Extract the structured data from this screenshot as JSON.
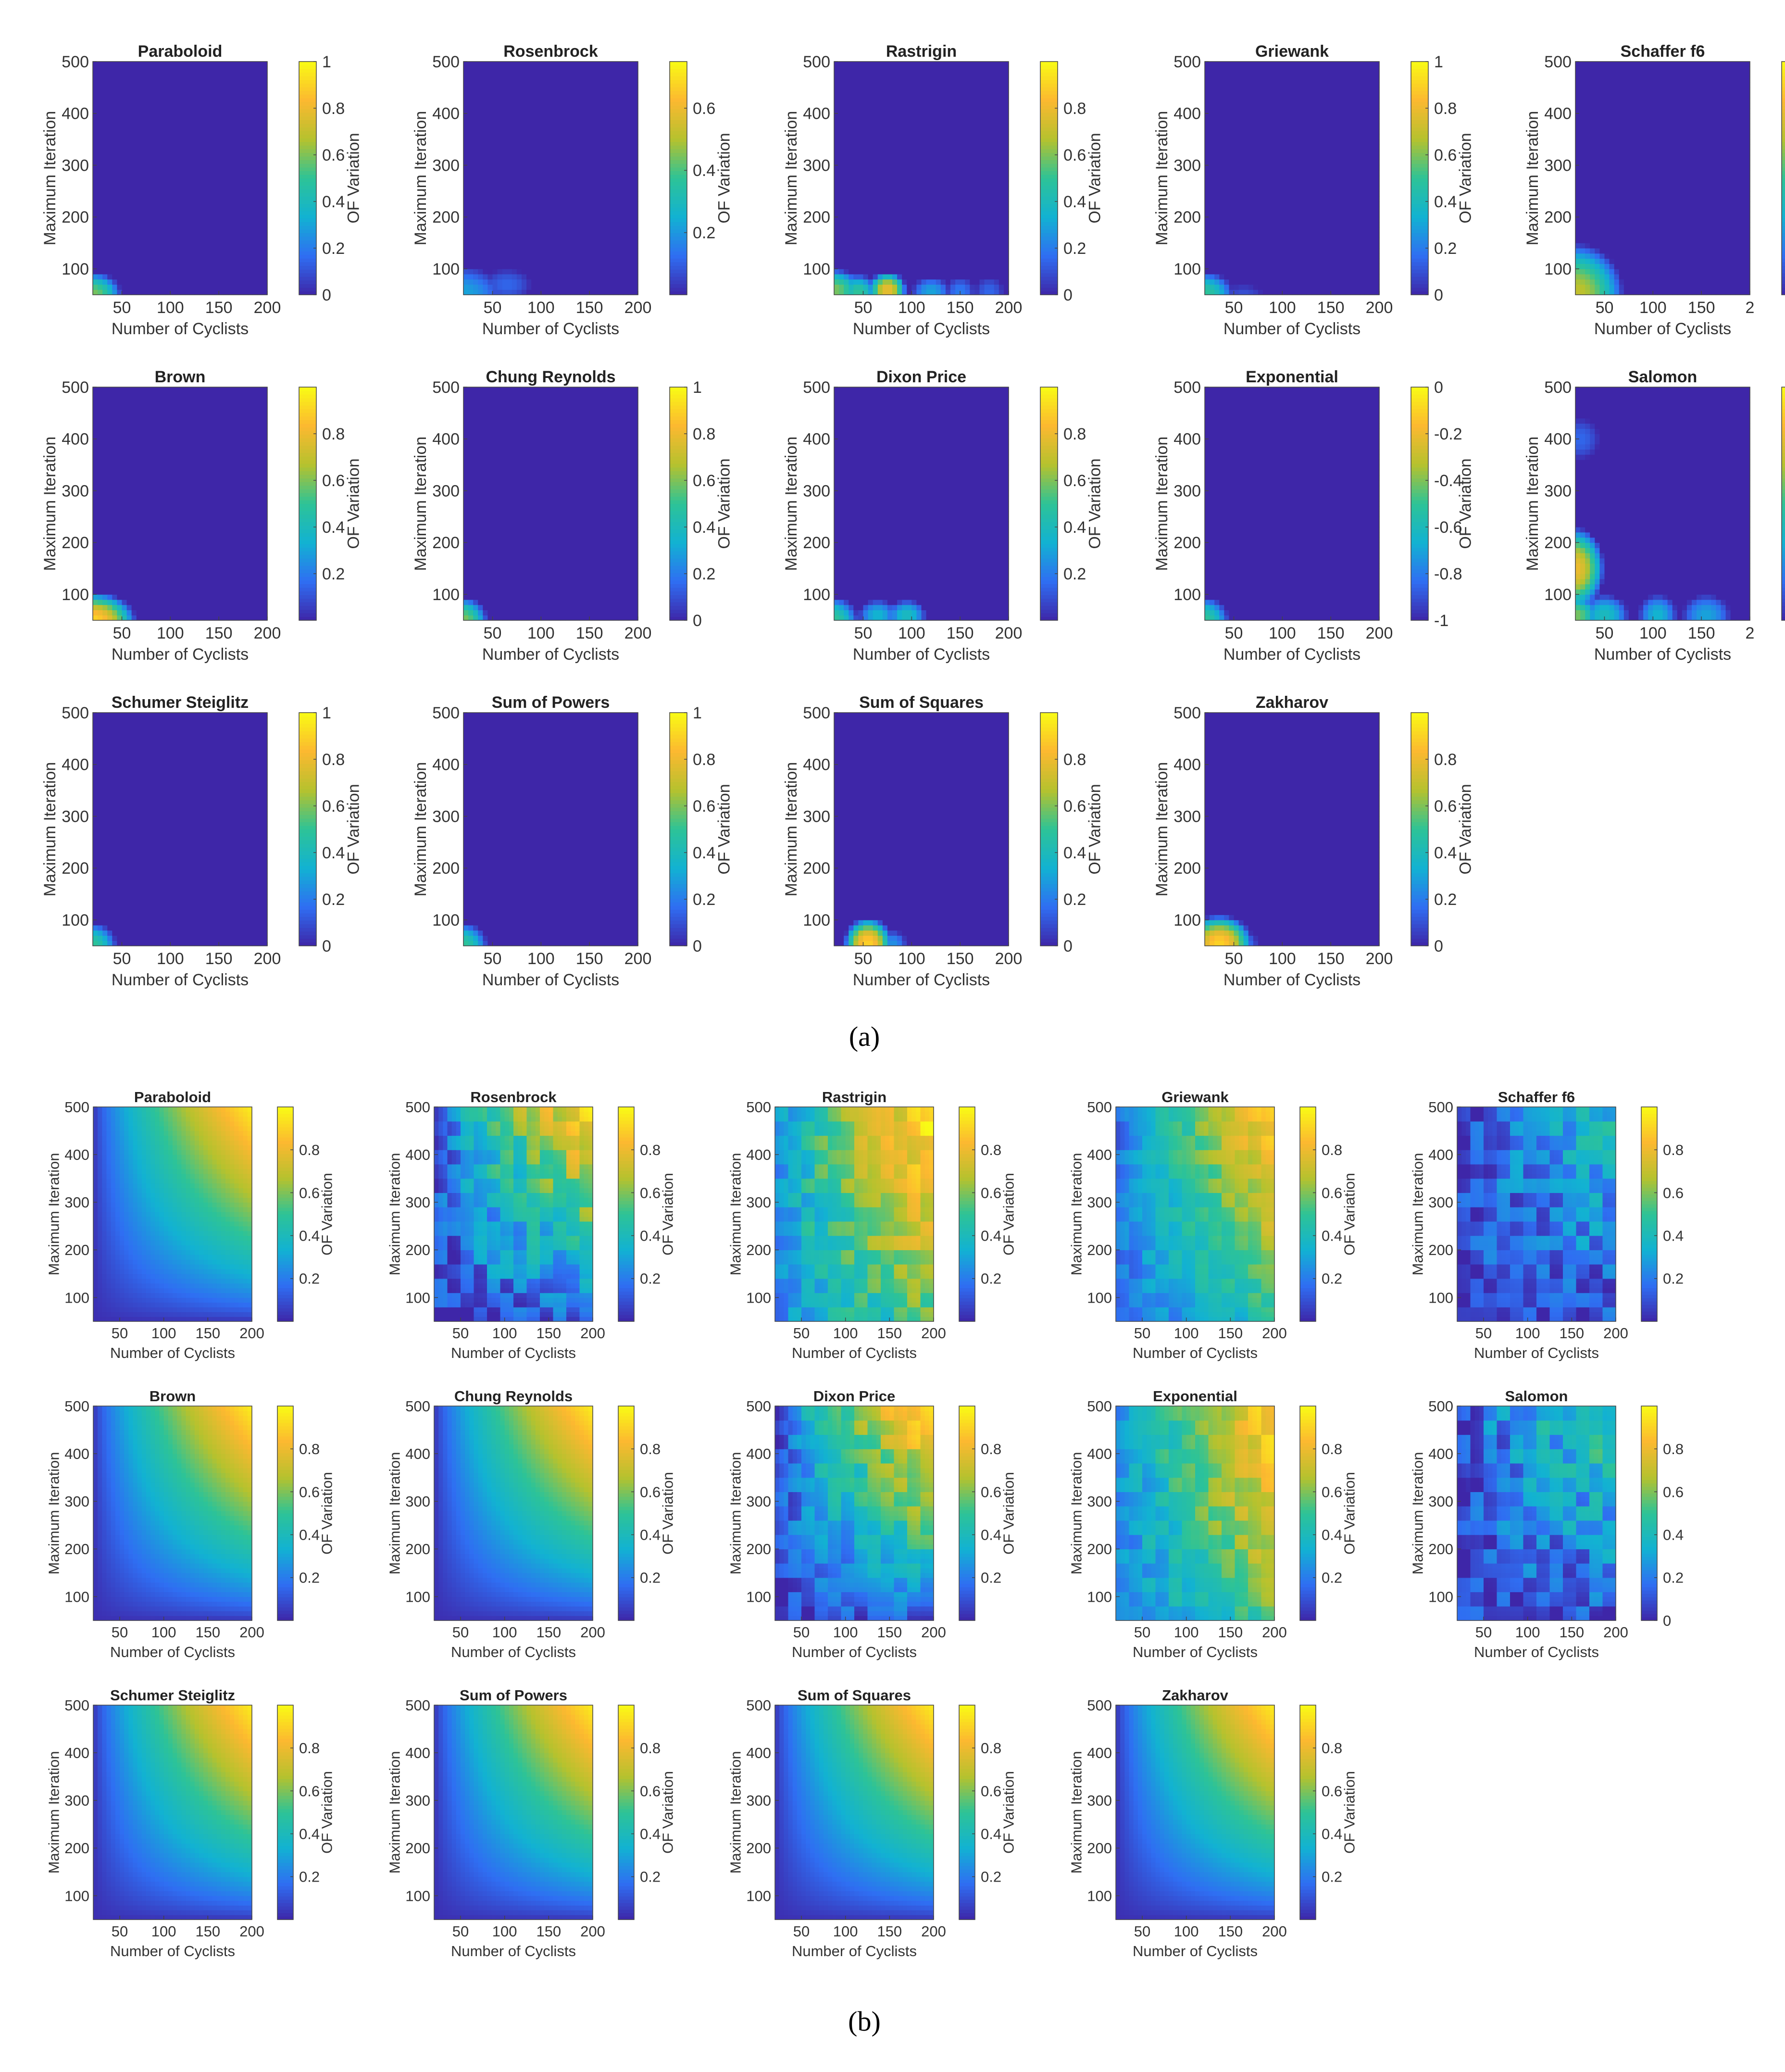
{
  "chart_data": [
    {
      "type": "heatmap",
      "panel_label": "(a)",
      "x_label": "Number of Cyclists",
      "y_label": "Maximum Iteration",
      "colorbar_label": "OF Variation",
      "xlim": [
        20,
        200
      ],
      "ylim": [
        50,
        500
      ],
      "colormap": [
        "#3e26a8",
        "#2f6ef2",
        "#12b2d2",
        "#2dc397",
        "#b5c22e",
        "#fcb830",
        "#f9fb15"
      ],
      "subplots": [
        {
          "title": "Paraboloid",
          "x_ticks": [
            "50",
            "100",
            "150",
            "200"
          ],
          "y_ticks": [
            "100",
            "200",
            "300",
            "400",
            "500"
          ],
          "cbar_ticks": [
            "0",
            "0.2",
            "0.4",
            "0.6",
            "0.8",
            "1"
          ],
          "cbar_range": [
            0,
            1
          ],
          "hotspots": [
            [
              20,
              50,
              30,
              45,
              0.6
            ]
          ]
        },
        {
          "title": "Rosenbrock",
          "x_ticks": [
            "50",
            "100",
            "150",
            "200"
          ],
          "y_ticks": [
            "100",
            "200",
            "300",
            "400",
            "500"
          ],
          "cbar_ticks": [
            "0.2",
            "0.4",
            "0.6"
          ],
          "cbar_range": [
            0,
            0.75
          ],
          "hotspots": [
            [
              20,
              50,
              40,
              55,
              0.3
            ],
            [
              65,
              70,
              25,
              30,
              0.15
            ]
          ]
        },
        {
          "title": "Rastrigin",
          "x_ticks": [
            "50",
            "100",
            "150",
            "200"
          ],
          "y_ticks": [
            "100",
            "200",
            "300",
            "400",
            "500"
          ],
          "cbar_ticks": [
            "0",
            "0.2",
            "0.4",
            "0.6",
            "0.8"
          ],
          "cbar_range": [
            0,
            1
          ],
          "hotspots": [
            [
              20,
              60,
              30,
              40,
              0.6
            ],
            [
              45,
              55,
              20,
              35,
              0.5
            ],
            [
              75,
              60,
              20,
              35,
              0.8
            ],
            [
              120,
              55,
              20,
              30,
              0.3
            ],
            [
              150,
              55,
              15,
              30,
              0.2
            ],
            [
              180,
              55,
              15,
              30,
              0.15
            ]
          ]
        },
        {
          "title": "Griewank",
          "x_ticks": [
            "50",
            "100",
            "150",
            "200"
          ],
          "y_ticks": [
            "100",
            "200",
            "300",
            "400",
            "500"
          ],
          "cbar_ticks": [
            "0",
            "0.2",
            "0.4",
            "0.6",
            "0.8",
            "1"
          ],
          "cbar_range": [
            0,
            1
          ],
          "hotspots": [
            [
              20,
              50,
              30,
              45,
              0.5
            ],
            [
              60,
              50,
              20,
              20,
              0.1
            ]
          ]
        },
        {
          "title": "Schaffer f6",
          "x_ticks": [
            "50",
            "100",
            "150",
            "2"
          ],
          "y_ticks": [
            "100",
            "200",
            "300",
            "400",
            "500"
          ],
          "cbar_ticks": [],
          "cbar_range": [
            0,
            1
          ],
          "hotspots": [
            [
              20,
              50,
              50,
              100,
              0.7
            ]
          ]
        },
        {
          "title": "Brown",
          "x_ticks": [
            "50",
            "100",
            "150",
            "200"
          ],
          "y_ticks": [
            "100",
            "200",
            "300",
            "400",
            "500"
          ],
          "cbar_ticks": [
            "0.2",
            "0.4",
            "0.6",
            "0.8"
          ],
          "cbar_range": [
            0,
            1
          ],
          "hotspots": [
            [
              20,
              50,
              45,
              55,
              0.9
            ]
          ]
        },
        {
          "title": "Chung Reynolds",
          "x_ticks": [
            "50",
            "100",
            "150",
            "200"
          ],
          "y_ticks": [
            "100",
            "200",
            "300",
            "400",
            "500"
          ],
          "cbar_ticks": [
            "0",
            "0.2",
            "0.4",
            "0.6",
            "0.8",
            "1"
          ],
          "cbar_range": [
            0,
            1
          ],
          "hotspots": [
            [
              20,
              50,
              25,
              45,
              0.6
            ]
          ]
        },
        {
          "title": "Dixon Price",
          "x_ticks": [
            "50",
            "100",
            "150",
            "200"
          ],
          "y_ticks": [
            "100",
            "200",
            "300",
            "400",
            "500"
          ],
          "cbar_ticks": [
            "0.2",
            "0.4",
            "0.6",
            "0.8"
          ],
          "cbar_range": [
            0,
            1
          ],
          "hotspots": [
            [
              20,
              50,
              25,
              45,
              0.5
            ],
            [
              65,
              60,
              20,
              30,
              0.35
            ],
            [
              95,
              60,
              20,
              30,
              0.4
            ]
          ]
        },
        {
          "title": "Exponential",
          "x_ticks": [
            "50",
            "100",
            "150",
            "200"
          ],
          "y_ticks": [
            "100",
            "200",
            "300",
            "400",
            "500"
          ],
          "cbar_ticks": [
            "0",
            "-0.2",
            "-0.4",
            "-0.6",
            "-0.8",
            "-1"
          ],
          "cbar_range": [
            -1,
            0
          ],
          "hotspots": [
            [
              20,
              50,
              25,
              45,
              0.5
            ]
          ]
        },
        {
          "title": "Salomon",
          "x_ticks": [
            "50",
            "100",
            "150",
            "2"
          ],
          "y_ticks": [
            "100",
            "200",
            "300",
            "400",
            "500"
          ],
          "cbar_ticks": [],
          "cbar_range": [
            0,
            1
          ],
          "hotspots": [
            [
              20,
              150,
              30,
              80,
              0.8
            ],
            [
              20,
              60,
              25,
              40,
              0.6
            ],
            [
              50,
              60,
              25,
              40,
              0.4
            ],
            [
              105,
              60,
              20,
              40,
              0.35
            ],
            [
              155,
              60,
              25,
              40,
              0.3
            ],
            [
              25,
              400,
              20,
              40,
              0.15
            ]
          ]
        },
        {
          "title": "Schumer Steiglitz",
          "x_ticks": [
            "50",
            "100",
            "150",
            "200"
          ],
          "y_ticks": [
            "100",
            "200",
            "300",
            "400",
            "500"
          ],
          "cbar_ticks": [
            "0",
            "0.2",
            "0.4",
            "0.6",
            "0.8",
            "1"
          ],
          "cbar_range": [
            0,
            1
          ],
          "hotspots": [
            [
              20,
              50,
              25,
              45,
              0.5
            ]
          ]
        },
        {
          "title": "Sum of Powers",
          "x_ticks": [
            "50",
            "100",
            "150",
            "200"
          ],
          "y_ticks": [
            "100",
            "200",
            "300",
            "400",
            "500"
          ],
          "cbar_ticks": [
            "0",
            "0.2",
            "0.4",
            "0.6",
            "0.8",
            "1"
          ],
          "cbar_range": [
            0,
            1
          ],
          "hotspots": [
            [
              20,
              50,
              25,
              45,
              0.5
            ]
          ]
        },
        {
          "title": "Sum of Squares",
          "x_ticks": [
            "50",
            "100",
            "150",
            "200"
          ],
          "y_ticks": [
            "100",
            "200",
            "300",
            "400",
            "500"
          ],
          "cbar_ticks": [
            "0",
            "0.2",
            "0.4",
            "0.6",
            "0.8"
          ],
          "cbar_range": [
            0,
            1
          ],
          "hotspots": [
            [
              55,
              55,
              25,
              50,
              0.9
            ],
            [
              80,
              55,
              15,
              25,
              0.25
            ]
          ]
        },
        {
          "title": "Zakharov",
          "x_ticks": [
            "50",
            "100",
            "150",
            "200"
          ],
          "y_ticks": [
            "100",
            "200",
            "300",
            "400",
            "500"
          ],
          "cbar_ticks": [
            "0",
            "0.2",
            "0.4",
            "0.6",
            "0.8"
          ],
          "cbar_range": [
            0,
            1
          ],
          "hotspots": [
            [
              35,
              55,
              35,
              55,
              0.9
            ],
            [
              60,
              55,
              15,
              25,
              0.2
            ]
          ]
        }
      ]
    },
    {
      "type": "heatmap",
      "panel_label": "(b)",
      "x_label": "Number of Cyclists",
      "y_label": "Maximum Iteration",
      "colorbar_label": "OF Variation",
      "xlim": [
        20,
        200
      ],
      "ylim": [
        50,
        500
      ],
      "colormap": [
        "#3e26a8",
        "#2f6ef2",
        "#12b2d2",
        "#2dc397",
        "#b5c22e",
        "#fcb830",
        "#f9fb15"
      ],
      "subplots": [
        {
          "title": "Paraboloid",
          "x_ticks": [
            "50",
            "100",
            "150",
            "200"
          ],
          "y_ticks": [
            "100",
            "200",
            "300",
            "400",
            "500"
          ],
          "cbar_ticks": [
            "0.2",
            "0.4",
            "0.6",
            "0.8"
          ],
          "cbar_range": [
            0,
            1
          ],
          "base": 0.02,
          "gain": 0.95,
          "noise": 0
        },
        {
          "title": "Rosenbrock",
          "x_ticks": [
            "50",
            "100",
            "150",
            "200"
          ],
          "y_ticks": [
            "100",
            "200",
            "300",
            "400",
            "500"
          ],
          "cbar_ticks": [
            "0.2",
            "0.4",
            "0.6",
            "0.8"
          ],
          "cbar_range": [
            0,
            1
          ],
          "base": 0.05,
          "gain": 0.85,
          "noise": 0.15
        },
        {
          "title": "Rastrigin",
          "x_ticks": [
            "50",
            "100",
            "150",
            "200"
          ],
          "y_ticks": [
            "100",
            "200",
            "300",
            "400",
            "500"
          ],
          "cbar_ticks": [
            "0.2",
            "0.4",
            "0.6",
            "0.8"
          ],
          "cbar_range": [
            0,
            1
          ],
          "base": 0.25,
          "gain": 0.7,
          "noise": 0.12,
          "xbias": 0.4
        },
        {
          "title": "Griewank",
          "x_ticks": [
            "50",
            "100",
            "150",
            "200"
          ],
          "y_ticks": [
            "100",
            "200",
            "300",
            "400",
            "500"
          ],
          "cbar_ticks": [
            "0.2",
            "0.4",
            "0.6",
            "0.8"
          ],
          "cbar_range": [
            0,
            1
          ],
          "base": 0.15,
          "gain": 0.75,
          "noise": 0.08,
          "xbias": 0.35
        },
        {
          "title": "Schaffer f6",
          "x_ticks": [
            "50",
            "100",
            "150",
            "200"
          ],
          "y_ticks": [
            "100",
            "200",
            "300",
            "400",
            "500"
          ],
          "cbar_ticks": [
            "0.2",
            "0.4",
            "0.6",
            "0.8"
          ],
          "cbar_range": [
            0,
            1
          ],
          "base": 0.05,
          "gain": 0.35,
          "noise": 0.15
        },
        {
          "title": "Brown",
          "x_ticks": [
            "50",
            "100",
            "150",
            "200"
          ],
          "y_ticks": [
            "100",
            "200",
            "300",
            "400",
            "500"
          ],
          "cbar_ticks": [
            "0.2",
            "0.4",
            "0.6",
            "0.8"
          ],
          "cbar_range": [
            0,
            1
          ],
          "base": 0.02,
          "gain": 0.95,
          "noise": 0
        },
        {
          "title": "Chung Reynolds",
          "x_ticks": [
            "50",
            "100",
            "150",
            "200"
          ],
          "y_ticks": [
            "100",
            "200",
            "300",
            "400",
            "500"
          ],
          "cbar_ticks": [
            "0.2",
            "0.4",
            "0.6",
            "0.8"
          ],
          "cbar_range": [
            0,
            1
          ],
          "base": 0.02,
          "gain": 0.95,
          "noise": 0
        },
        {
          "title": "Dixon Price",
          "x_ticks": [
            "50",
            "100",
            "150",
            "200"
          ],
          "y_ticks": [
            "100",
            "200",
            "300",
            "400",
            "500"
          ],
          "cbar_ticks": [
            "0.2",
            "0.4",
            "0.6",
            "0.8"
          ],
          "cbar_range": [
            0,
            1
          ],
          "base": 0.05,
          "gain": 0.9,
          "noise": 0.12
        },
        {
          "title": "Exponential",
          "x_ticks": [
            "50",
            "100",
            "150",
            "200"
          ],
          "y_ticks": [
            "100",
            "200",
            "300",
            "400",
            "500"
          ],
          "cbar_ticks": [
            "0.2",
            "0.4",
            "0.6",
            "0.8"
          ],
          "cbar_range": [
            0,
            1
          ],
          "base": 0.2,
          "gain": 0.7,
          "noise": 0.1,
          "xbias": 0.45
        },
        {
          "title": "Salomon",
          "x_ticks": [
            "50",
            "100",
            "150",
            "200"
          ],
          "y_ticks": [
            "100",
            "200",
            "300",
            "400",
            "500"
          ],
          "cbar_ticks": [
            "0",
            "0.2",
            "0.4",
            "0.6",
            "0.8"
          ],
          "cbar_range": [
            0,
            1
          ],
          "base": 0.05,
          "gain": 0.45,
          "noise": 0.15
        },
        {
          "title": "Schumer Steiglitz",
          "x_ticks": [
            "50",
            "100",
            "150",
            "200"
          ],
          "y_ticks": [
            "100",
            "200",
            "300",
            "400",
            "500"
          ],
          "cbar_ticks": [
            "0.2",
            "0.4",
            "0.6",
            "0.8"
          ],
          "cbar_range": [
            0,
            1
          ],
          "base": 0.02,
          "gain": 0.95,
          "noise": 0
        },
        {
          "title": "Sum of Powers",
          "x_ticks": [
            "50",
            "100",
            "150",
            "200"
          ],
          "y_ticks": [
            "100",
            "200",
            "300",
            "400",
            "500"
          ],
          "cbar_ticks": [
            "0.2",
            "0.4",
            "0.6",
            "0.8"
          ],
          "cbar_range": [
            0,
            1
          ],
          "base": 0.02,
          "gain": 0.95,
          "noise": 0
        },
        {
          "title": "Sum of Squares",
          "x_ticks": [
            "50",
            "100",
            "150",
            "200"
          ],
          "y_ticks": [
            "100",
            "200",
            "300",
            "400",
            "500"
          ],
          "cbar_ticks": [
            "0.2",
            "0.4",
            "0.6",
            "0.8"
          ],
          "cbar_range": [
            0,
            1
          ],
          "base": 0.02,
          "gain": 0.95,
          "noise": 0
        },
        {
          "title": "Zakharov",
          "x_ticks": [
            "50",
            "100",
            "150",
            "200"
          ],
          "y_ticks": [
            "100",
            "200",
            "300",
            "400",
            "500"
          ],
          "cbar_ticks": [
            "0.2",
            "0.4",
            "0.6",
            "0.8"
          ],
          "cbar_range": [
            0,
            1
          ],
          "base": 0.02,
          "gain": 0.95,
          "noise": 0
        }
      ]
    }
  ]
}
